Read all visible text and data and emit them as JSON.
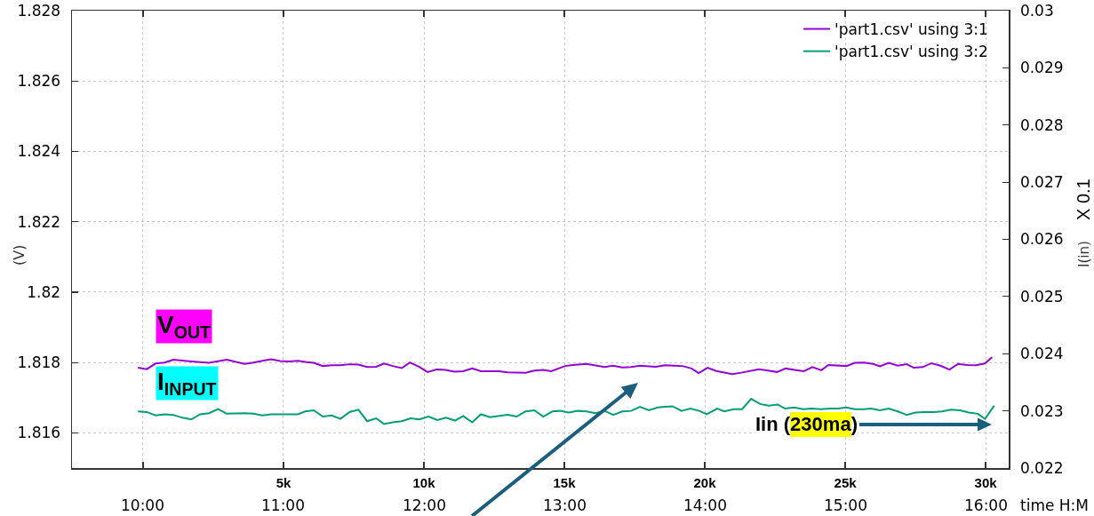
{
  "chart_data": {
    "type": "line",
    "series": [
      {
        "name": "'part1.csv' using 3:1",
        "color": "#9400d3",
        "x": [
          -180,
          130,
          450,
          770,
          1080,
          1720,
          2350,
          2980,
          3610,
          3930,
          4250,
          4560,
          4880,
          5200,
          5510,
          5830,
          6080,
          6400,
          6720,
          7030,
          7350,
          7670,
          7980,
          8300,
          8580,
          8890,
          9210,
          9500,
          9820,
          10130,
          10450,
          10770,
          11080,
          11400,
          11720,
          12030,
          12670,
          12980,
          13620,
          13930,
          14250,
          14530,
          15030,
          15290,
          15790,
          16430,
          16740,
          17060,
          17380,
          17690,
          18260,
          18580,
          19210,
          19530,
          19780,
          20100,
          20410,
          20980,
          21300,
          21930,
          22250,
          22570,
          22880,
          23200,
          23520,
          23830,
          24150,
          24400,
          25040,
          25350,
          25670,
          25990,
          26240,
          26550,
          26870,
          27190,
          27440,
          27760,
          28070,
          28390,
          28710,
          29020,
          29340,
          29660,
          29970,
          30230
        ],
        "values": [
          1.81785,
          1.81781,
          1.81797,
          1.818,
          1.81808,
          1.81803,
          1.81799,
          1.81808,
          1.81796,
          1.818,
          1.81805,
          1.81809,
          1.81804,
          1.81803,
          1.81805,
          1.81801,
          1.81799,
          1.8179,
          1.81792,
          1.81792,
          1.81795,
          1.81794,
          1.81787,
          1.81788,
          1.81797,
          1.8179,
          1.81784,
          1.818,
          1.81788,
          1.81773,
          1.8178,
          1.81779,
          1.81774,
          1.81775,
          1.81783,
          1.81775,
          1.81775,
          1.81772,
          1.81771,
          1.81777,
          1.81779,
          1.81775,
          1.8179,
          1.81793,
          1.81796,
          1.81787,
          1.81791,
          1.81786,
          1.81787,
          1.81791,
          1.81788,
          1.81792,
          1.8179,
          1.81783,
          1.8177,
          1.81785,
          1.81776,
          1.81767,
          1.81771,
          1.81781,
          1.81777,
          1.81773,
          1.81783,
          1.81779,
          1.81775,
          1.81787,
          1.81778,
          1.81793,
          1.8179,
          1.81799,
          1.818,
          1.81796,
          1.81789,
          1.81799,
          1.81791,
          1.81795,
          1.81785,
          1.81787,
          1.81798,
          1.81791,
          1.8178,
          1.81796,
          1.81793,
          1.81792,
          1.81797,
          1.81815
        ]
      },
      {
        "name": "'part1.csv' using 3:2",
        "color": "#009e73",
        "axis": "y2",
        "x": [
          -180,
          130,
          450,
          770,
          1080,
          1400,
          1720,
          2030,
          2350,
          2670,
          2980,
          3610,
          3930,
          4250,
          4560,
          5200,
          5510,
          5770,
          6080,
          6400,
          6720,
          7030,
          7350,
          7670,
          7980,
          8300,
          8580,
          8890,
          9210,
          9530,
          9840,
          10160,
          10480,
          10790,
          11110,
          11400,
          11720,
          12030,
          12350,
          12980,
          13300,
          13620,
          13930,
          14250,
          14570,
          14840,
          15160,
          15480,
          15790,
          16110,
          16430,
          16740,
          17060,
          17380,
          17690,
          18010,
          18330,
          18590,
          18850,
          19170,
          19490,
          19800,
          20070,
          20440,
          20700,
          21020,
          21330,
          21650,
          21970,
          22280,
          22600,
          22860,
          23180,
          23500,
          23810,
          24130,
          24440,
          24760,
          25030,
          25340,
          25660,
          25920,
          26240,
          26550,
          26870,
          27190,
          27500,
          27820,
          28140,
          28450,
          28770,
          29090,
          29400,
          29720,
          29980,
          30300
        ],
        "values": [
          0.02299,
          0.02298,
          0.02292,
          0.02294,
          0.02293,
          0.02288,
          0.02285,
          0.02294,
          0.02296,
          0.02303,
          0.02295,
          0.02296,
          0.02295,
          0.02292,
          0.02294,
          0.02294,
          0.02294,
          0.02299,
          0.02301,
          0.0229,
          0.02292,
          0.02286,
          0.02298,
          0.02302,
          0.02282,
          0.02287,
          0.02277,
          0.0228,
          0.02282,
          0.02287,
          0.02285,
          0.0229,
          0.02284,
          0.02288,
          0.02283,
          0.02291,
          0.0228,
          0.02294,
          0.02289,
          0.02293,
          0.0229,
          0.02299,
          0.02301,
          0.0229,
          0.02299,
          0.023,
          0.02297,
          0.023,
          0.02299,
          0.02296,
          0.023,
          0.02293,
          0.02299,
          0.023,
          0.02307,
          0.02301,
          0.02306,
          0.02307,
          0.02308,
          0.023,
          0.02304,
          0.023,
          0.02294,
          0.02304,
          0.02299,
          0.02303,
          0.02303,
          0.02321,
          0.02312,
          0.02309,
          0.02311,
          0.02304,
          0.02306,
          0.02303,
          0.02304,
          0.02303,
          0.02304,
          0.02304,
          0.02306,
          0.02303,
          0.02303,
          0.02304,
          0.02301,
          0.02304,
          0.02299,
          0.02293,
          0.02297,
          0.02298,
          0.02298,
          0.02299,
          0.02302,
          0.02301,
          0.02297,
          0.02295,
          0.02286,
          0.02309
        ]
      }
    ],
    "ylabel": "(V)",
    "y2label": "I(in)",
    "x2label": "time H:M",
    "xlim": [
      -2530,
      30820
    ],
    "xticks": [
      {
        "value": 0,
        "label": null
      },
      {
        "value": 5000,
        "label": "5k"
      },
      {
        "value": 10000,
        "label": "10k"
      },
      {
        "value": 15000,
        "label": "15k"
      },
      {
        "value": 20000,
        "label": "20k"
      },
      {
        "value": 25000,
        "label": "25k"
      },
      {
        "value": 30000,
        "label": "30k"
      }
    ],
    "x2lim": [
      9.494,
      16.164
    ],
    "x2ticks": [
      {
        "value": 10,
        "label": "10:00"
      },
      {
        "value": 11,
        "label": "11:00"
      },
      {
        "value": 12,
        "label": "12:00"
      },
      {
        "value": 13,
        "label": "13:00"
      },
      {
        "value": 14,
        "label": "14:00"
      },
      {
        "value": 15,
        "label": "15:00"
      },
      {
        "value": 16,
        "label": "16:00"
      }
    ],
    "ylim": [
      1.815,
      1.828
    ],
    "yticks": [
      1.816,
      1.818,
      1.82,
      1.822,
      1.824,
      1.826,
      1.828
    ],
    "y2lim": [
      0.022,
      0.03
    ],
    "y2ticks": [
      0.022,
      0.023,
      0.024,
      0.025,
      0.026,
      0.027,
      0.028,
      0.029,
      0.03
    ],
    "grid": true,
    "legend": "top right",
    "line_style": "solid",
    "annotations": [
      "V$_{OUT}$",
      "I$_{INPUT}$",
      "Iin (230ma)",
      "X 0.1"
    ]
  }
}
